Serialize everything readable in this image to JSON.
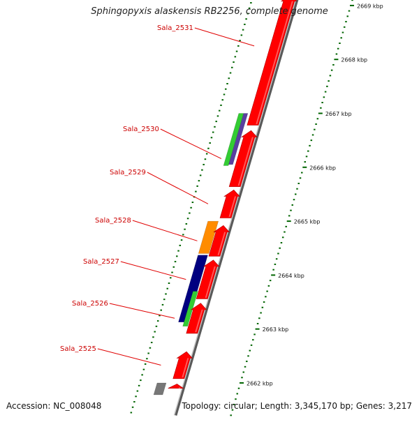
{
  "title": "Sphingopyxis alaskensis RB2256, complete genome",
  "footer": {
    "accession": "Accession: NC_008048",
    "summary": "Topology: circular; Length: 3,345,170 bp; Genes: 3,217"
  },
  "scale": {
    "unit": "kbp",
    "labels": [
      {
        "kbp": 2662,
        "text": "2662 kbp"
      },
      {
        "kbp": 2663,
        "text": "2663 kbp"
      },
      {
        "kbp": 2664,
        "text": "2664 kbp"
      },
      {
        "kbp": 2665,
        "text": "2665 kbp"
      },
      {
        "kbp": 2666,
        "text": "2666 kbp"
      },
      {
        "kbp": 2667,
        "text": "2667 kbp"
      },
      {
        "kbp": 2668,
        "text": "2668 kbp"
      },
      {
        "kbp": 2669,
        "text": "2669 kbp"
      }
    ]
  },
  "genes": [
    {
      "id": "Sala_2525",
      "label": "Sala_2525",
      "start_kbp": 2662.08,
      "end_kbp": 2662.58,
      "strand": "+",
      "color": "#ff0000"
    },
    {
      "id": "Sala_2526",
      "label": "Sala_2526",
      "start_kbp": 2662.92,
      "end_kbp": 2663.48,
      "strand": "+",
      "color": "#ff0000"
    },
    {
      "id": "Sala_2527",
      "label": "Sala_2527",
      "start_kbp": 2663.56,
      "end_kbp": 2664.28,
      "strand": "+",
      "color": "#ff0000"
    },
    {
      "id": "Sala_2528",
      "label": "Sala_2528",
      "start_kbp": 2664.35,
      "end_kbp": 2664.92,
      "strand": "+",
      "color": "#ff0000"
    },
    {
      "id": "Sala_2529",
      "label": "Sala_2529",
      "start_kbp": 2665.06,
      "end_kbp": 2665.58,
      "strand": "+",
      "color": "#ff0000"
    },
    {
      "id": "Sala_2530",
      "label": "Sala_2530",
      "start_kbp": 2665.64,
      "end_kbp": 2666.68,
      "strand": "+",
      "color": "#ff0000"
    },
    {
      "id": "Sala_2531",
      "label": "Sala_2531",
      "start_kbp": 2666.78,
      "end_kbp": 2669.2,
      "strand": "+",
      "color": "#ff0000"
    },
    {
      "id": "Sala_2524",
      "label": "",
      "start_kbp": 2661.9,
      "end_kbp": 2661.98,
      "strand": "+",
      "color": "#ff0000"
    }
  ],
  "features": [
    {
      "name": "feature-orange",
      "start_kbp": 2664.4,
      "end_kbp": 2665.0,
      "color": "#ff8c00"
    },
    {
      "name": "feature-navy",
      "start_kbp": 2663.13,
      "end_kbp": 2664.37,
      "color": "#000080"
    },
    {
      "name": "feature-green-lower",
      "start_kbp": 2663.05,
      "end_kbp": 2663.7,
      "color": "#33cc33"
    },
    {
      "name": "feature-green-upper",
      "start_kbp": 2666.03,
      "end_kbp": 2667.0,
      "color": "#33cc33"
    },
    {
      "name": "feature-purple",
      "start_kbp": 2666.05,
      "end_kbp": 2667.0,
      "color": "#5a3fa0"
    },
    {
      "name": "feature-grey",
      "start_kbp": 2661.78,
      "end_kbp": 2662.0,
      "color": "#777777"
    }
  ],
  "colors": {
    "gene": "#ff0000",
    "gene_label": "#cc0000",
    "backbone": "#888888",
    "tick": "#006400"
  }
}
